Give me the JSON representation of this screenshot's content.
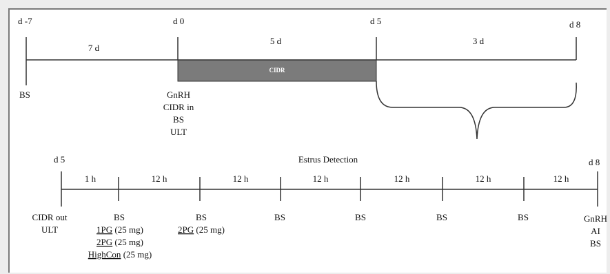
{
  "colors": {
    "line": "#333333",
    "cidr_fill": "#7b7b7b",
    "cidr_text": "#ffffff",
    "background": "#ededed",
    "frame_border": "#7a7a7a"
  },
  "top_timeline": {
    "days": [
      "d -7",
      "d 0",
      "d 5",
      "d 8"
    ],
    "intervals": [
      "7 d",
      "5 d",
      "3 d"
    ],
    "cidr_label": "CIDR",
    "events": {
      "d_minus7": [
        "BS"
      ],
      "d0": [
        "GnRH",
        "CIDR in",
        "BS",
        "ULT"
      ]
    }
  },
  "bottom_timeline": {
    "start_label": "d 5",
    "end_label": "d 8",
    "title": "Estrus Detection",
    "intervals": [
      "1 h",
      "12 h",
      "12 h",
      "12 h",
      "12 h",
      "12 h",
      "12 h"
    ],
    "events": {
      "start": [
        "CIDR out",
        "ULT"
      ],
      "t1": {
        "bs": "BS",
        "treatments": [
          {
            "name": "1PG",
            "dose": " (25 mg)"
          },
          {
            "name": "2PG",
            "dose": " (25 mg)"
          },
          {
            "name": "HighCon",
            "dose": " (25 mg)"
          }
        ]
      },
      "t2": {
        "bs": "BS",
        "treatments": [
          {
            "name": "2PG",
            "dose": " (25 mg)"
          }
        ]
      },
      "bs_marks": [
        "BS",
        "BS",
        "BS",
        "BS"
      ],
      "end": [
        "GnRH",
        "AI",
        "BS"
      ]
    }
  }
}
